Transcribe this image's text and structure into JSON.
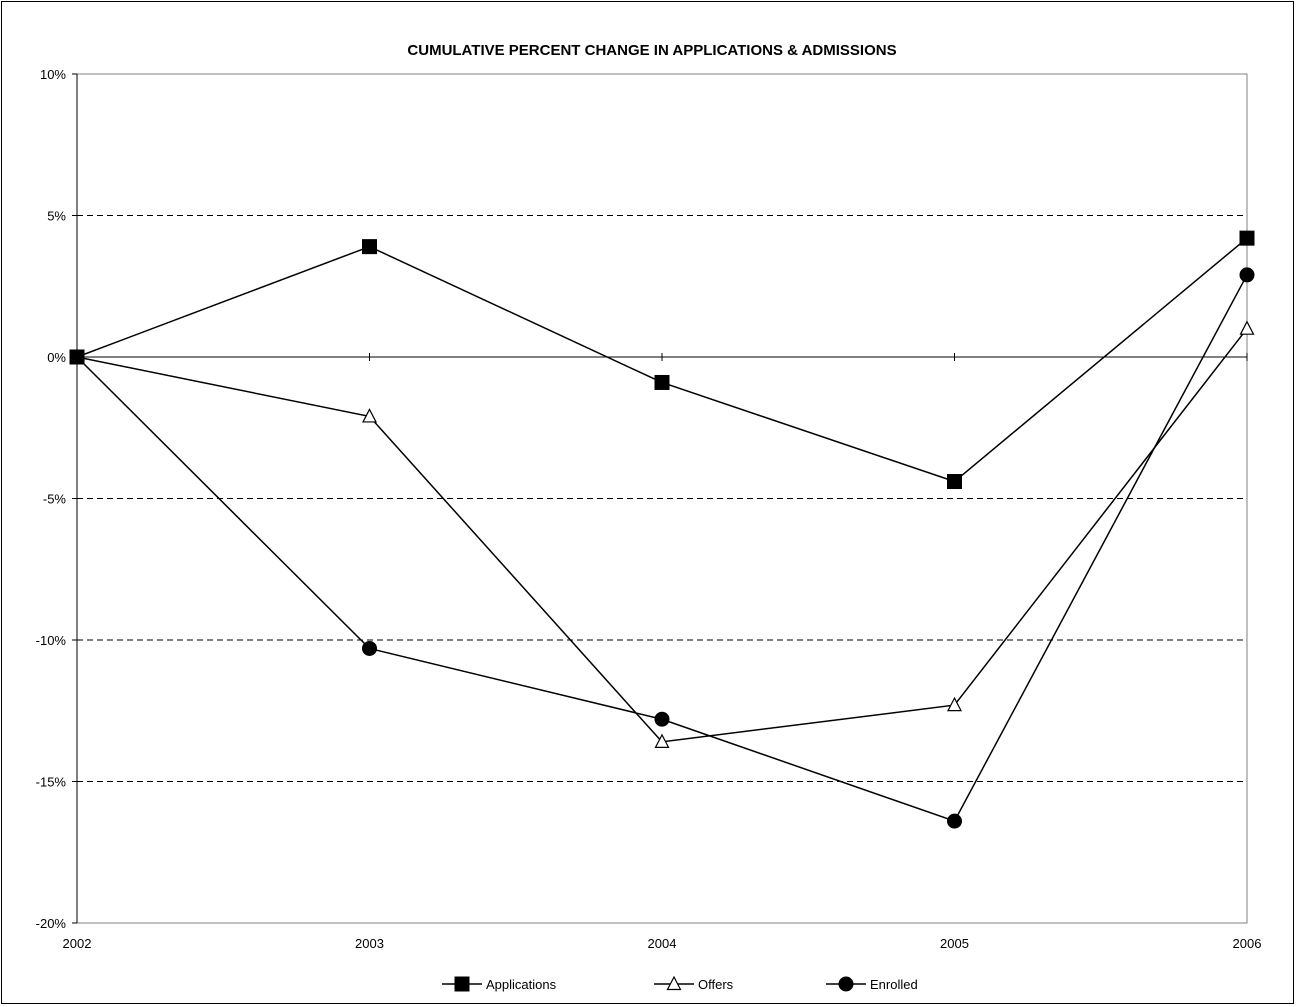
{
  "chart_data": {
    "type": "line",
    "title": "CUMULATIVE PERCENT CHANGE IN APPLICATIONS & ADMISSIONS",
    "xlabel": "",
    "ylabel": "",
    "categories": [
      "2002",
      "2003",
      "2004",
      "2005",
      "2006"
    ],
    "ylim": [
      -20,
      10
    ],
    "yticks": [
      10,
      5,
      0,
      -5,
      -10,
      -15,
      -20
    ],
    "ytick_labels": [
      "10%",
      "5%",
      "0%",
      "-5%",
      "-10%",
      "-15%",
      "-20%"
    ],
    "grid": "horizontal dashed",
    "legend_position": "bottom",
    "series": [
      {
        "name": "Applications",
        "marker": "square",
        "values": [
          0,
          3.9,
          -0.9,
          -4.4,
          4.2
        ]
      },
      {
        "name": "Offers",
        "marker": "triangle-open",
        "values": [
          0,
          -2.1,
          -13.6,
          -12.3,
          1.0
        ]
      },
      {
        "name": "Enrolled",
        "marker": "circle",
        "values": [
          0,
          -10.3,
          -12.8,
          -16.4,
          2.9
        ]
      }
    ],
    "colors": {
      "line": "#000000",
      "grid": "#000000",
      "plot_border": "#808080",
      "background": "#ffffff"
    }
  }
}
